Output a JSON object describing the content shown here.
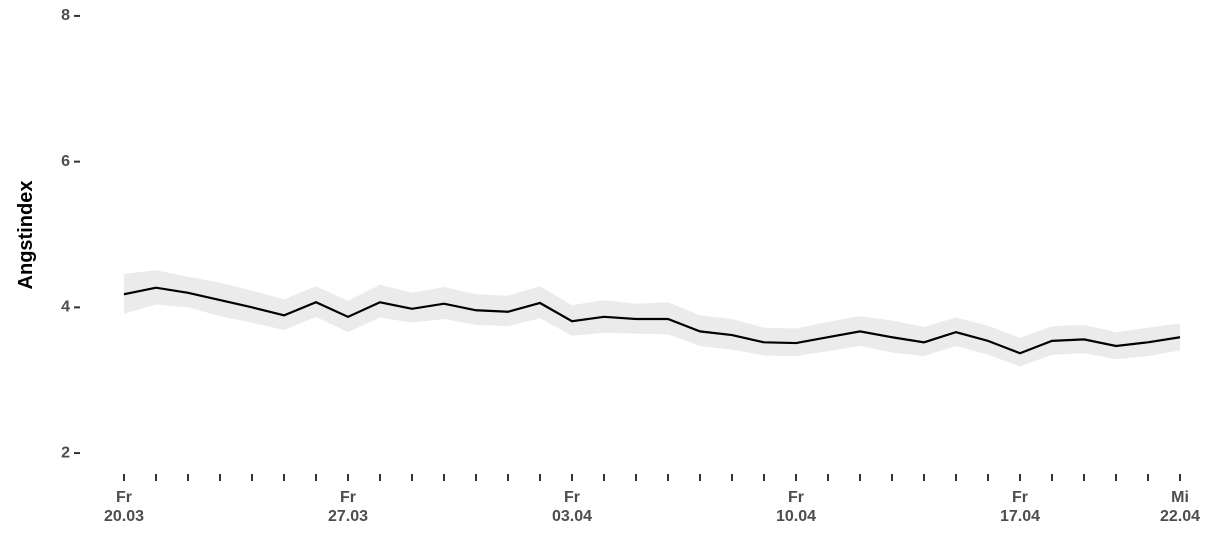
{
  "chart_data": {
    "type": "line",
    "y_label": "Angstindex",
    "categories": [
      [
        "Fr",
        "20.03"
      ],
      null,
      null,
      null,
      null,
      null,
      null,
      [
        "Fr",
        "27.03"
      ],
      null,
      null,
      null,
      null,
      null,
      null,
      [
        "Fr",
        "03.04"
      ],
      null,
      null,
      null,
      null,
      null,
      null,
      [
        "Fr",
        "10.04"
      ],
      null,
      null,
      null,
      null,
      null,
      null,
      [
        "Fr",
        "17.04"
      ],
      null,
      null,
      null,
      null,
      [
        "Mi",
        "22.04"
      ]
    ],
    "values": [
      4.18,
      4.27,
      4.2,
      4.1,
      4.0,
      3.89,
      4.07,
      3.87,
      4.07,
      3.98,
      4.05,
      3.96,
      3.94,
      4.06,
      3.81,
      3.87,
      3.84,
      3.84,
      3.67,
      3.62,
      3.52,
      3.51,
      3.59,
      3.67,
      3.59,
      3.52,
      3.66,
      3.54,
      3.37,
      3.54,
      3.56,
      3.47,
      3.52,
      3.59
    ],
    "band_upper": [
      4.46,
      4.51,
      4.42,
      4.34,
      4.23,
      4.11,
      4.29,
      4.09,
      4.31,
      4.2,
      4.28,
      4.18,
      4.16,
      4.29,
      4.03,
      4.1,
      4.05,
      4.07,
      3.89,
      3.84,
      3.72,
      3.71,
      3.8,
      3.88,
      3.82,
      3.73,
      3.86,
      3.75,
      3.58,
      3.74,
      3.76,
      3.66,
      3.72,
      3.78
    ],
    "band_lower": [
      3.91,
      4.04,
      4.0,
      3.88,
      3.79,
      3.69,
      3.87,
      3.66,
      3.86,
      3.79,
      3.84,
      3.76,
      3.74,
      3.85,
      3.61,
      3.65,
      3.64,
      3.63,
      3.47,
      3.42,
      3.34,
      3.33,
      3.4,
      3.47,
      3.38,
      3.33,
      3.47,
      3.35,
      3.19,
      3.35,
      3.37,
      3.29,
      3.33,
      3.41
    ],
    "color": "#000000",
    "band_color": "#ebebeb",
    "ylim": [
      1.85,
      8.15
    ],
    "yticks": [
      2,
      4,
      6,
      8
    ]
  }
}
